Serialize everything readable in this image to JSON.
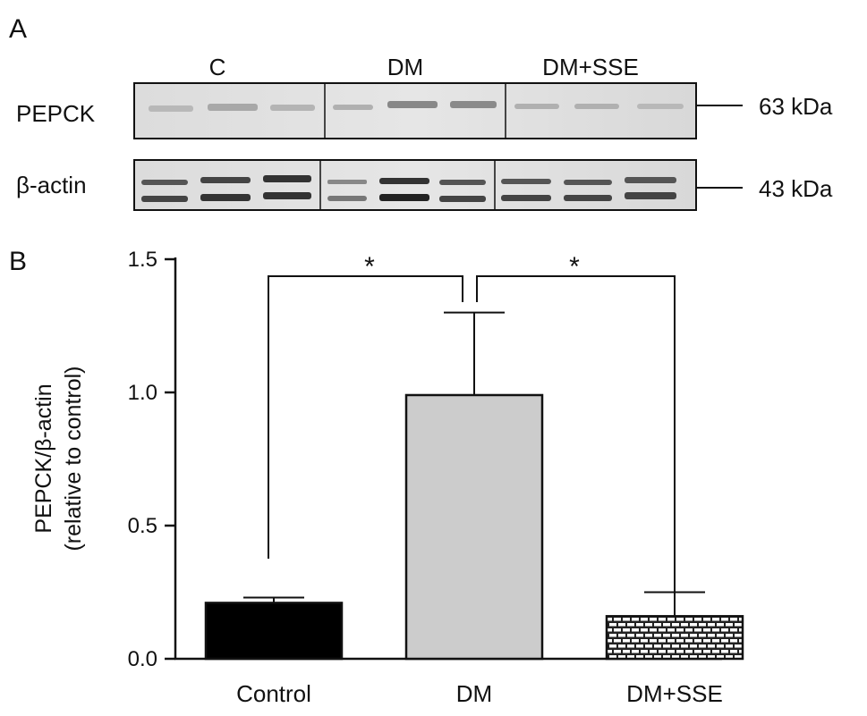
{
  "panel_a": {
    "letter": "A",
    "group_labels": [
      "C",
      "DM",
      "DM+SSE"
    ],
    "bands": [
      {
        "name": "PEPCK",
        "size": "63 kDa"
      },
      {
        "name": "β-actin",
        "size": "43 kDa"
      }
    ]
  },
  "panel_b": {
    "letter": "B"
  },
  "chart_data": {
    "type": "bar",
    "categories": [
      "Control",
      "DM",
      "DM+SSE"
    ],
    "values": [
      0.21,
      0.99,
      0.16
    ],
    "error_up": [
      0.02,
      0.31,
      0.09
    ],
    "ylabel_line1": "PEPCK/β-actin",
    "ylabel_line2": "(relative to control)",
    "ylim": [
      0,
      1.5
    ],
    "yticks": [
      "0.0",
      "0.5",
      "1.0",
      "1.5"
    ],
    "significance": [
      {
        "from": "Control",
        "to": "DM",
        "label": "*"
      },
      {
        "from": "DM",
        "to": "DM+SSE",
        "label": "*"
      }
    ],
    "bar_fills": [
      "#000000",
      "#cccccc",
      "brick-pattern"
    ]
  }
}
